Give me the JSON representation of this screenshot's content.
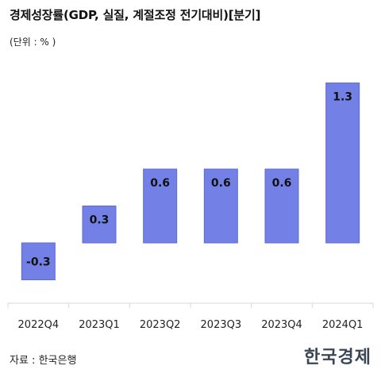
{
  "header": {
    "title": "경제성장률(GDP, 실질, 계절조정 전기대비)[분기]",
    "unit": "(단위 : % )"
  },
  "footer": {
    "source": "자료 : 한국은행",
    "logo_text": "한국경제"
  },
  "colors": {
    "bar_fill": "#7381e6",
    "bar_stroke": "#5c6bd6",
    "axis": "#d9d9d9"
  },
  "chart_data": {
    "type": "bar",
    "categories": [
      "2022Q4",
      "2023Q1",
      "2023Q2",
      "2023Q3",
      "2023Q4",
      "2024Q1"
    ],
    "values": [
      -0.3,
      0.3,
      0.6,
      0.6,
      0.6,
      1.3
    ],
    "data_labels": [
      "-0.3",
      "0.3",
      "0.6",
      "0.6",
      "0.6",
      "1.3"
    ],
    "title": "경제성장률(GDP, 실질, 계절조정 전기대비)[분기]",
    "xlabel": "",
    "ylabel": "",
    "ylim": [
      -0.5,
      1.5
    ],
    "grid": false,
    "legend": "none"
  }
}
